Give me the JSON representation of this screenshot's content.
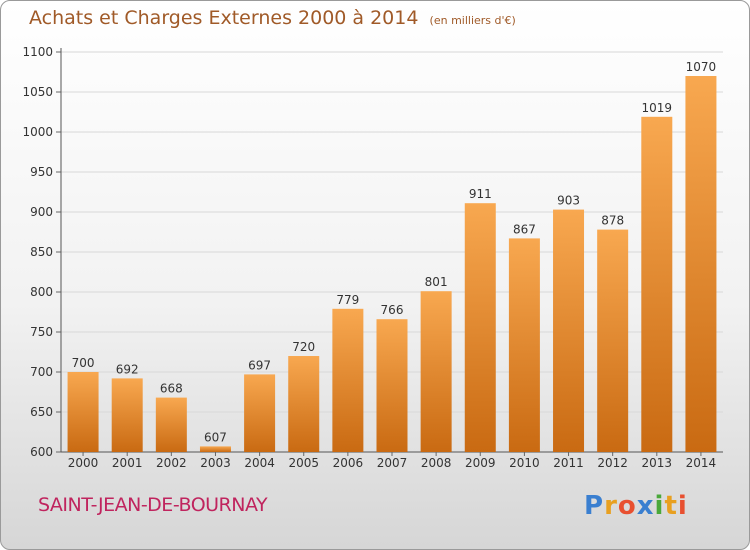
{
  "header": {
    "title": "Achats et Charges Externes 2000 à 2014",
    "unit": "(en milliers d'€)"
  },
  "commune": "SAINT-JEAN-DE-BOURNAY",
  "logo": {
    "text": "Proxiti",
    "letters": [
      {
        "ch": "P",
        "color": "#3a7fd0"
      },
      {
        "ch": "r",
        "color": "#e8a020"
      },
      {
        "ch": "o",
        "color": "#e85030"
      },
      {
        "ch": "x",
        "color": "#3a7fd0"
      },
      {
        "ch": "i",
        "color": "#4aa83a"
      },
      {
        "ch": "t",
        "color": "#e8a020"
      },
      {
        "ch": "i",
        "color": "#e85030"
      }
    ]
  },
  "colors": {
    "bar_light": "#f8a850",
    "bar_dark": "#c96a12",
    "text": "#333333"
  },
  "chart_data": {
    "type": "bar",
    "title": "Achats et Charges Externes 2000 à 2014",
    "subtitle": "(en milliers d'€)",
    "xlabel": "",
    "ylabel": "",
    "categories": [
      "2000",
      "2001",
      "2002",
      "2003",
      "2004",
      "2005",
      "2006",
      "2007",
      "2008",
      "2009",
      "2010",
      "2011",
      "2012",
      "2013",
      "2014"
    ],
    "values": [
      700,
      692,
      668,
      607,
      697,
      720,
      779,
      766,
      801,
      911,
      867,
      903,
      878,
      1019,
      1070
    ],
    "ylim": [
      600,
      1100
    ],
    "yticks": [
      600,
      650,
      700,
      750,
      800,
      850,
      900,
      950,
      1000,
      1050,
      1100
    ],
    "grid": true,
    "legend": "none"
  }
}
